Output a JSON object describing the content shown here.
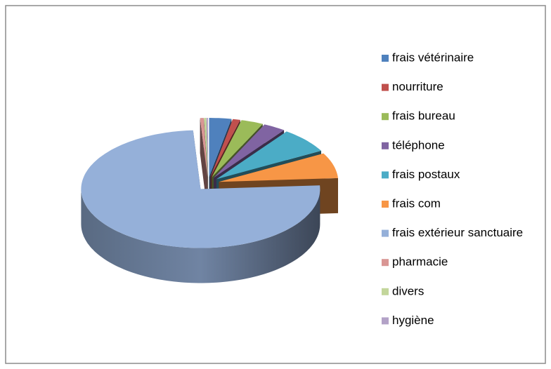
{
  "chart_data": {
    "type": "pie",
    "categories": [
      "frais vétérinaire",
      "nourriture",
      "frais bureau",
      "téléphone",
      "frais postaux",
      "frais com",
      "frais extérieur sanctuaire",
      "pharmacie",
      "divers",
      "hygiène"
    ],
    "values": [
      3,
      1,
      3,
      3,
      7,
      7,
      75,
      0.5,
      0.3,
      0.2
    ],
    "colors": [
      "#4f81bd",
      "#c0504d",
      "#9bbb59",
      "#8064a2",
      "#4bacc6",
      "#f79646",
      "#95b0d9",
      "#d99694",
      "#c3d69b",
      "#b3a2c7"
    ],
    "legend": "right"
  }
}
